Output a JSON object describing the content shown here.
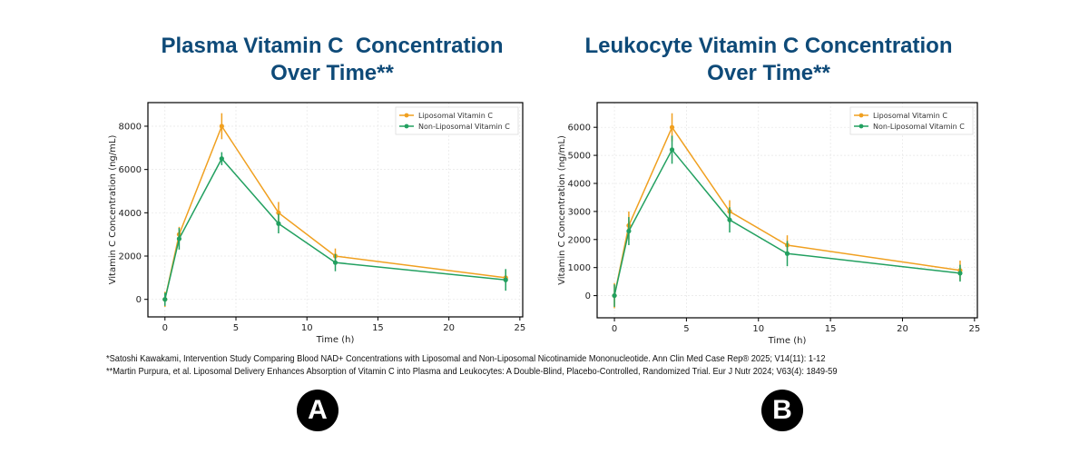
{
  "colors": {
    "title": "#0e4a78",
    "liposomal": "#f0a020",
    "non_liposomal": "#22a060"
  },
  "chart_data": [
    {
      "type": "line",
      "title_lines": [
        "Plasma Vitamin C  Concentration",
        "Over Time**"
      ],
      "xlabel": "Time (h)",
      "ylabel": "Vitamin C Concentration (ng/mL)",
      "xlim": [
        -1.2,
        25.2
      ],
      "ylim": [
        -810,
        9090
      ],
      "xticks": [
        0,
        5,
        10,
        15,
        20,
        25
      ],
      "yticks": [
        0,
        2000,
        4000,
        6000,
        8000
      ],
      "grid": true,
      "legend": "top-right",
      "x": [
        0,
        1,
        4,
        8,
        12,
        24
      ],
      "series": [
        {
          "name": "Liposomal Vitamin C",
          "values": [
            0,
            3000,
            8000,
            4000,
            2000,
            1000
          ],
          "errors": [
            350,
            350,
            600,
            500,
            350,
            350
          ]
        },
        {
          "name": "Non-Liposomal Vitamin C",
          "values": [
            0,
            2800,
            6500,
            3500,
            1700,
            900
          ],
          "errors": [
            300,
            500,
            300,
            450,
            400,
            500
          ]
        }
      ]
    },
    {
      "type": "line",
      "title_lines": [
        "Leukocyte Vitamin C Concentration",
        "Over Time**"
      ],
      "xlabel": "Time (h)",
      "ylabel": "Vitamin C Concentration (ng/mL)",
      "xlim": [
        -1.2,
        25.2
      ],
      "ylim": [
        -790,
        6880
      ],
      "xticks": [
        0,
        5,
        10,
        15,
        20,
        25
      ],
      "yticks": [
        0,
        1000,
        2000,
        3000,
        4000,
        5000,
        6000
      ],
      "grid": true,
      "legend": "top-right",
      "x": [
        0,
        1,
        4,
        8,
        12,
        24
      ],
      "series": [
        {
          "name": "Liposomal Vitamin C",
          "values": [
            0,
            2500,
            6000,
            3000,
            1800,
            900
          ],
          "errors": [
            450,
            500,
            500,
            400,
            350,
            350
          ]
        },
        {
          "name": "Non-Liposomal Vitamin C",
          "values": [
            0,
            2300,
            5200,
            2700,
            1500,
            800
          ],
          "errors": [
            400,
            500,
            500,
            450,
            450,
            300
          ]
        }
      ]
    }
  ],
  "references": [
    "*Satoshi Kawakami, Intervention Study Comparing Blood NAD+ Concentrations with Liposomal and Non-Liposomal Nicotinamide Mononucleotide. Ann Clin Med Case Rep® 2025; V14(11): 1-12",
    "**Martin Purpura, et al.  Liposomal Delivery Enhances Absorption of Vitamin C into Plasma and Leukocytes: A Double-Blind, Placebo-Controlled, Randomized Trial. Eur J Nutr 2024;  V63(4): 1849-59"
  ],
  "badges": [
    "A",
    "B"
  ]
}
